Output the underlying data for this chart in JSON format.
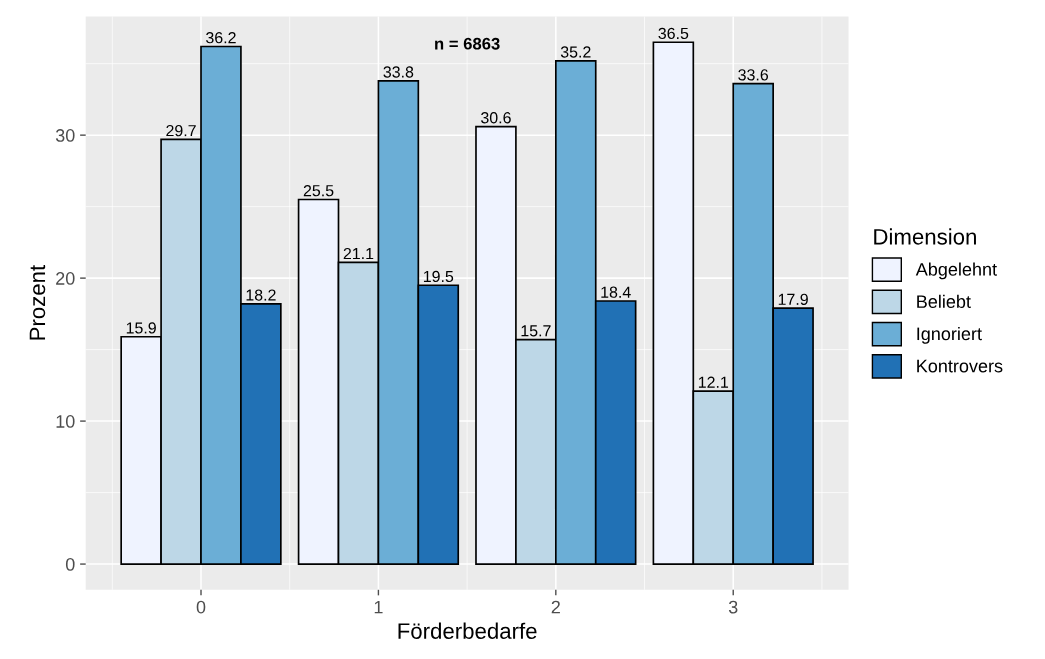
{
  "chart_data": {
    "type": "bar",
    "xlabel": "Förderbedarfe",
    "ylabel": "Prozent",
    "legend_title": "Dimension",
    "x": [
      0,
      1,
      2,
      3
    ],
    "series": [
      {
        "name": "Abgelehnt",
        "color": "#eff3ff",
        "values": [
          15.9,
          25.5,
          30.6,
          36.5
        ]
      },
      {
        "name": "Beliebt",
        "color": "#bdd7e7",
        "values": [
          29.7,
          21.1,
          15.7,
          12.1
        ]
      },
      {
        "name": "Ignoriert",
        "color": "#6baed6",
        "values": [
          36.2,
          33.8,
          35.2,
          33.6
        ]
      },
      {
        "name": "Kontrovers",
        "color": "#2171b5",
        "values": [
          18.2,
          19.5,
          18.4,
          17.9
        ]
      }
    ],
    "xlim": [
      -0.65,
      3.65
    ],
    "ylim": [
      -1.8,
      38.3
    ],
    "xticks": [
      0,
      1,
      2,
      3
    ],
    "yticks": [
      0,
      10,
      20,
      30
    ],
    "annotations": [
      "n = 6863"
    ],
    "data_labels": true,
    "grid": true,
    "legend": "right"
  }
}
